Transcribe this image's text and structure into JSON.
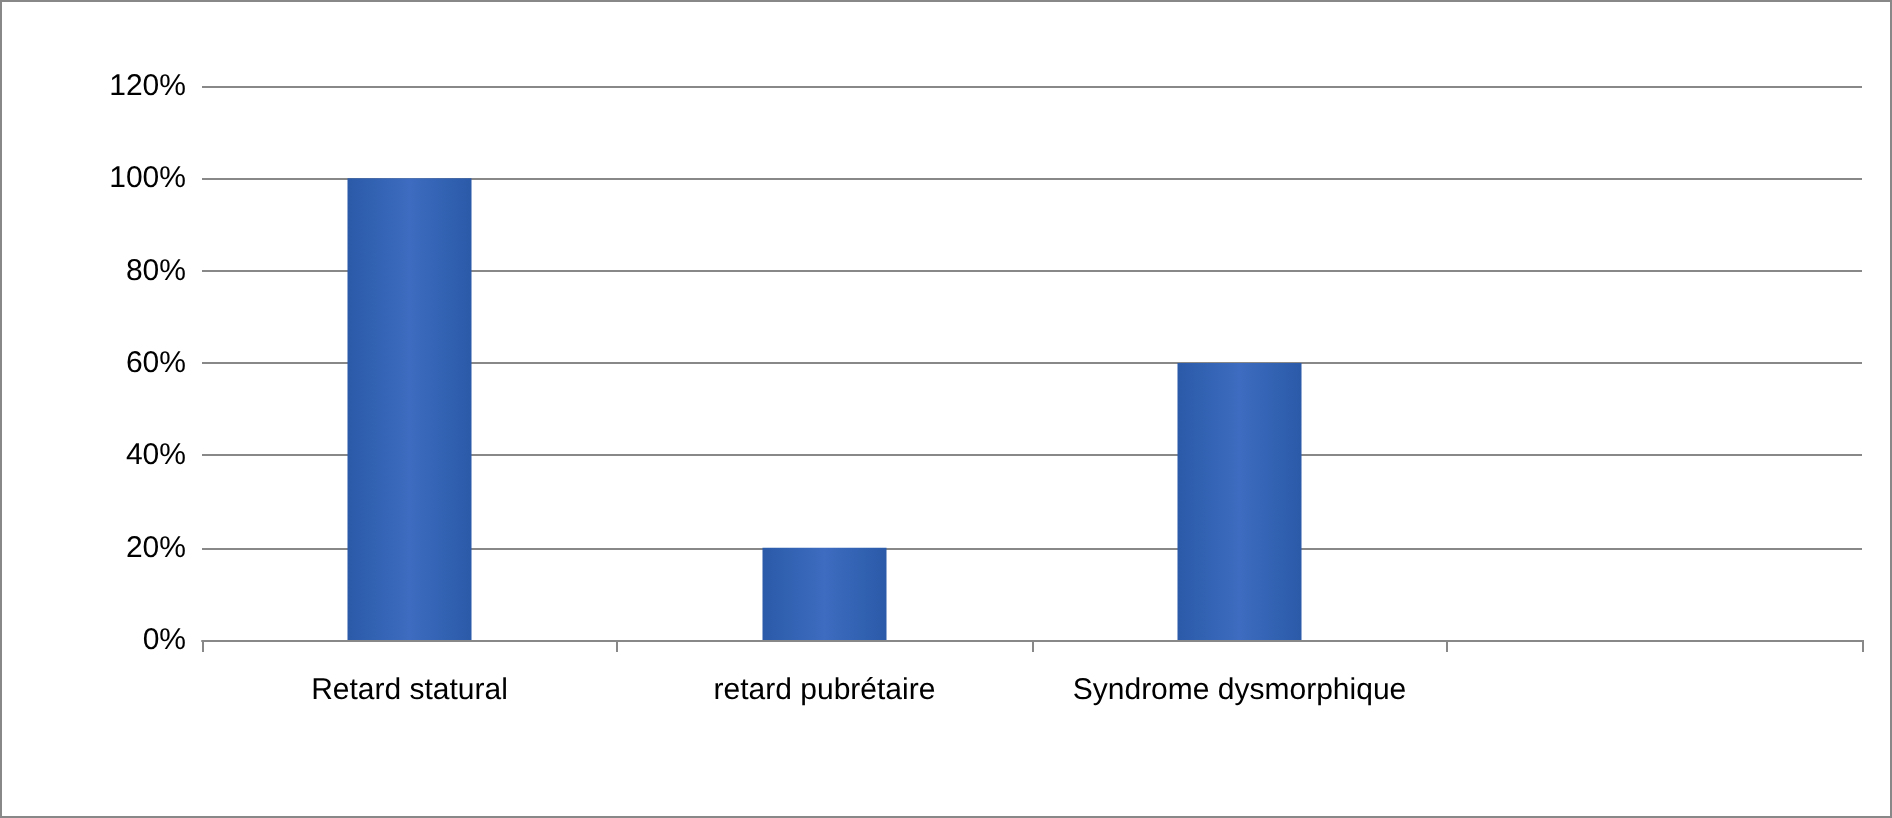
{
  "chart_data": {
    "type": "bar",
    "categories": [
      "Retard statural",
      "retard pubrétaire",
      "Syndrome dysmorphique",
      null
    ],
    "values": [
      100,
      20,
      60,
      null
    ],
    "color": "#3d6cc0",
    "ylim": [
      0,
      120
    ],
    "yticks": [
      {
        "value": 0,
        "label": "0%"
      },
      {
        "value": 20,
        "label": "20%"
      },
      {
        "value": 40,
        "label": "40%"
      },
      {
        "value": 60,
        "label": "60%"
      },
      {
        "value": 80,
        "label": "80%"
      },
      {
        "value": 100,
        "label": "100%"
      },
      {
        "value": 120,
        "label": "120%"
      }
    ],
    "grid": "y"
  }
}
